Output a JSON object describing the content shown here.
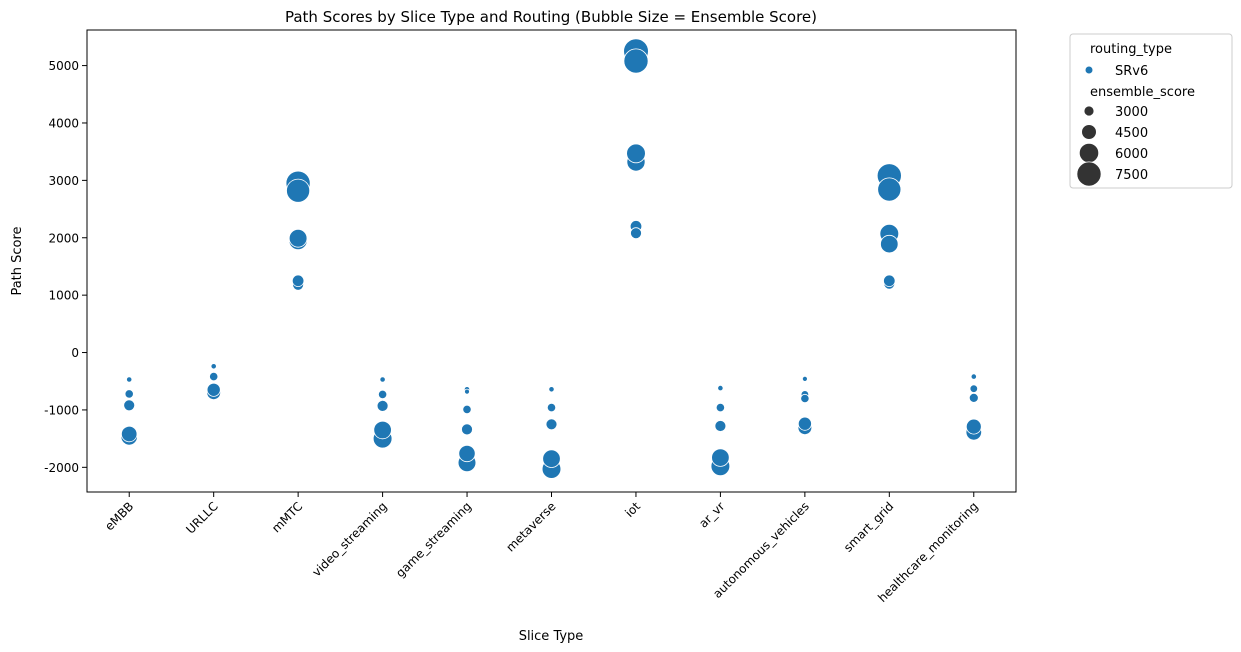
{
  "chart_data": {
    "type": "scatter",
    "title": "Path Scores by Slice Type and Routing (Bubble Size = Ensemble Score)",
    "xlabel": "Slice Type",
    "ylabel": "Path Score",
    "categories": [
      "eMBB",
      "URLLC",
      "mMTC",
      "video_streaming",
      "game_streaming",
      "metaverse",
      "iot",
      "ar_vr",
      "autonomous_vehicles",
      "smart_grid",
      "healthcare_monitoring"
    ],
    "ylim": [
      -2430,
      5620
    ],
    "yticks": [
      -2000,
      -1000,
      0,
      1000,
      2000,
      3000,
      4000,
      5000
    ],
    "grid": false,
    "legend_position": "outside-right",
    "color": "#1f77b4",
    "legend": {
      "hue_title": "routing_type",
      "hue_entries": [
        {
          "label": "SRv6",
          "color": "#1f77b4"
        }
      ],
      "size_title": "ensemble_score",
      "size_entries": [
        3000,
        4500,
        6000,
        7500
      ]
    },
    "series": [
      {
        "name": "SRv6",
        "points": [
          {
            "x": "eMBB",
            "y": -470,
            "size": 1500
          },
          {
            "x": "eMBB",
            "y": -720,
            "size": 2500
          },
          {
            "x": "eMBB",
            "y": -920,
            "size": 3300
          },
          {
            "x": "eMBB",
            "y": -1470,
            "size": 5000
          },
          {
            "x": "eMBB",
            "y": -1420,
            "size": 4800
          },
          {
            "x": "URLLC",
            "y": -240,
            "size": 1500
          },
          {
            "x": "URLLC",
            "y": -420,
            "size": 2500
          },
          {
            "x": "URLLC",
            "y": -700,
            "size": 4200
          },
          {
            "x": "URLLC",
            "y": -650,
            "size": 4000
          },
          {
            "x": "mMTC",
            "y": 2950,
            "size": 7500
          },
          {
            "x": "mMTC",
            "y": 2820,
            "size": 7200
          },
          {
            "x": "mMTC",
            "y": 1950,
            "size": 5600
          },
          {
            "x": "mMTC",
            "y": 1990,
            "size": 5500
          },
          {
            "x": "mMTC",
            "y": 1180,
            "size": 3300
          },
          {
            "x": "mMTC",
            "y": 1250,
            "size": 3500
          },
          {
            "x": "video_streaming",
            "y": -470,
            "size": 1500
          },
          {
            "x": "video_streaming",
            "y": -730,
            "size": 2500
          },
          {
            "x": "video_streaming",
            "y": -930,
            "size": 3300
          },
          {
            "x": "video_streaming",
            "y": -1500,
            "size": 5800
          },
          {
            "x": "video_streaming",
            "y": -1350,
            "size": 5400
          },
          {
            "x": "game_streaming",
            "y": -640,
            "size": 1500
          },
          {
            "x": "game_streaming",
            "y": -680,
            "size": 1400
          },
          {
            "x": "game_streaming",
            "y": -990,
            "size": 2500
          },
          {
            "x": "game_streaming",
            "y": -1340,
            "size": 3300
          },
          {
            "x": "game_streaming",
            "y": -1920,
            "size": 5500
          },
          {
            "x": "game_streaming",
            "y": -1760,
            "size": 5000
          },
          {
            "x": "metaverse",
            "y": -640,
            "size": 1500
          },
          {
            "x": "metaverse",
            "y": -960,
            "size": 2500
          },
          {
            "x": "metaverse",
            "y": -1250,
            "size": 3300
          },
          {
            "x": "metaverse",
            "y": -2030,
            "size": 5800
          },
          {
            "x": "metaverse",
            "y": -1850,
            "size": 5400
          },
          {
            "x": "iot",
            "y": 5250,
            "size": 7700
          },
          {
            "x": "iot",
            "y": 5080,
            "size": 7500
          },
          {
            "x": "iot",
            "y": 3320,
            "size": 5600
          },
          {
            "x": "iot",
            "y": 3470,
            "size": 5800
          },
          {
            "x": "iot",
            "y": 2200,
            "size": 3500
          },
          {
            "x": "iot",
            "y": 2080,
            "size": 3300
          },
          {
            "x": "ar_vr",
            "y": -620,
            "size": 1500
          },
          {
            "x": "ar_vr",
            "y": -960,
            "size": 2500
          },
          {
            "x": "ar_vr",
            "y": -1280,
            "size": 3300
          },
          {
            "x": "ar_vr",
            "y": -1980,
            "size": 5800
          },
          {
            "x": "ar_vr",
            "y": -1830,
            "size": 5400
          },
          {
            "x": "autonomous_vehicles",
            "y": -460,
            "size": 1400
          },
          {
            "x": "autonomous_vehicles",
            "y": -730,
            "size": 2200
          },
          {
            "x": "autonomous_vehicles",
            "y": -800,
            "size": 2500
          },
          {
            "x": "autonomous_vehicles",
            "y": -1310,
            "size": 4200
          },
          {
            "x": "autonomous_vehicles",
            "y": -1240,
            "size": 4000
          },
          {
            "x": "smart_grid",
            "y": 3080,
            "size": 7500
          },
          {
            "x": "smart_grid",
            "y": 2840,
            "size": 7200
          },
          {
            "x": "smart_grid",
            "y": 2070,
            "size": 5800
          },
          {
            "x": "smart_grid",
            "y": 1890,
            "size": 5400
          },
          {
            "x": "smart_grid",
            "y": 1200,
            "size": 3300
          },
          {
            "x": "smart_grid",
            "y": 1250,
            "size": 3500
          },
          {
            "x": "healthcare_monitoring",
            "y": -420,
            "size": 1500
          },
          {
            "x": "healthcare_monitoring",
            "y": -630,
            "size": 2200
          },
          {
            "x": "healthcare_monitoring",
            "y": -790,
            "size": 2700
          },
          {
            "x": "healthcare_monitoring",
            "y": -1390,
            "size": 4800
          },
          {
            "x": "healthcare_monitoring",
            "y": -1290,
            "size": 4600
          }
        ]
      }
    ]
  }
}
